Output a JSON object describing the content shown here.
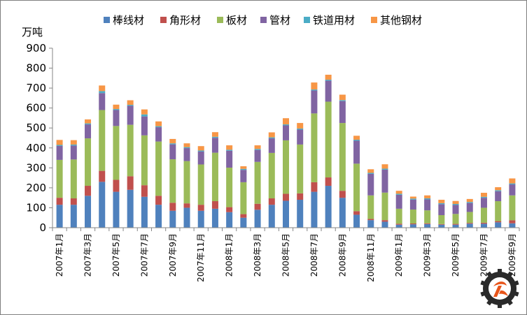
{
  "colors": {
    "rod": "#4F81BD",
    "angle": "#C0504D",
    "plate": "#9BBB59",
    "pipe": "#8064A2",
    "rail": "#4BACC6",
    "other": "#F79646",
    "frame": "#7f7f7f",
    "axis": "#868686"
  },
  "chart_data": {
    "type": "bar",
    "stacked": true,
    "ylabel": "万吨",
    "ylim": [
      0,
      900
    ],
    "yticks": [
      0,
      100,
      200,
      300,
      400,
      500,
      600,
      700,
      800,
      900
    ],
    "grid": false,
    "legend_position": "top",
    "x_tick_labels": [
      "2007年1月",
      "2007年3月",
      "2007年5月",
      "2007年7月",
      "2007年9月",
      "2007年11月",
      "2008年1月",
      "2008年3月",
      "2008年5月",
      "2008年7月",
      "2008年9月",
      "2008年11月",
      "2009年1月",
      "2009年3月",
      "2009年5月",
      "2009年7月",
      "2009年9月"
    ],
    "categories": [
      "2007-01",
      "2007-02",
      "2007-03",
      "2007-04",
      "2007-05",
      "2007-06",
      "2007-07",
      "2007-08",
      "2007-09",
      "2007-10",
      "2007-11",
      "2007-12",
      "2008-01",
      "2008-02",
      "2008-03",
      "2008-04",
      "2008-05",
      "2008-06",
      "2008-07",
      "2008-08",
      "2008-09",
      "2008-10",
      "2008-11",
      "2008-12",
      "2009-01",
      "2009-02",
      "2009-03",
      "2009-04",
      "2009-05",
      "2009-06",
      "2009-07",
      "2009-08",
      "2009-09"
    ],
    "series": [
      {
        "name": "棒线材",
        "color_key": "rod",
        "values": [
          115,
          115,
          160,
          230,
          180,
          190,
          155,
          115,
          85,
          100,
          85,
          95,
          78,
          50,
          90,
          115,
          135,
          140,
          180,
          210,
          150,
          65,
          38,
          30,
          15,
          17,
          18,
          15,
          15,
          20,
          20,
          27,
          22
        ]
      },
      {
        "name": "角形材",
        "color_key": "angle",
        "values": [
          35,
          32,
          50,
          55,
          60,
          68,
          58,
          45,
          40,
          22,
          30,
          38,
          25,
          18,
          30,
          32,
          35,
          32,
          48,
          42,
          35,
          18,
          6,
          8,
          5,
          4,
          4,
          3,
          4,
          4,
          5,
          6,
          15
        ]
      },
      {
        "name": "板材",
        "color_key": "plate",
        "values": [
          190,
          195,
          238,
          305,
          270,
          258,
          250,
          272,
          218,
          212,
          202,
          243,
          198,
          160,
          210,
          228,
          268,
          245,
          345,
          380,
          340,
          238,
          118,
          138,
          75,
          70,
          65,
          45,
          50,
          55,
          75,
          100,
          125
        ]
      },
      {
        "name": "管材",
        "color_key": "pipe",
        "values": [
          70,
          70,
          70,
          85,
          80,
          95,
          95,
          72,
          75,
          65,
          65,
          75,
          85,
          62,
          60,
          73,
          75,
          75,
          115,
          105,
          110,
          115,
          108,
          115,
          70,
          50,
          55,
          55,
          45,
          45,
          50,
          50,
          55
        ]
      },
      {
        "name": "铁道用材",
        "color_key": "rail",
        "values": [
          5,
          5,
          5,
          10,
          5,
          5,
          10,
          5,
          5,
          5,
          5,
          5,
          5,
          5,
          5,
          5,
          5,
          5,
          5,
          5,
          5,
          5,
          5,
          5,
          5,
          5,
          5,
          5,
          5,
          5,
          5,
          5,
          5
        ]
      },
      {
        "name": "其他钢材",
        "color_key": "other",
        "values": [
          25,
          22,
          20,
          28,
          22,
          23,
          25,
          24,
          22,
          19,
          22,
          23,
          22,
          13,
          18,
          25,
          31,
          28,
          35,
          25,
          27,
          20,
          18,
          22,
          15,
          10,
          15,
          17,
          15,
          15,
          20,
          15,
          25
        ]
      }
    ]
  }
}
